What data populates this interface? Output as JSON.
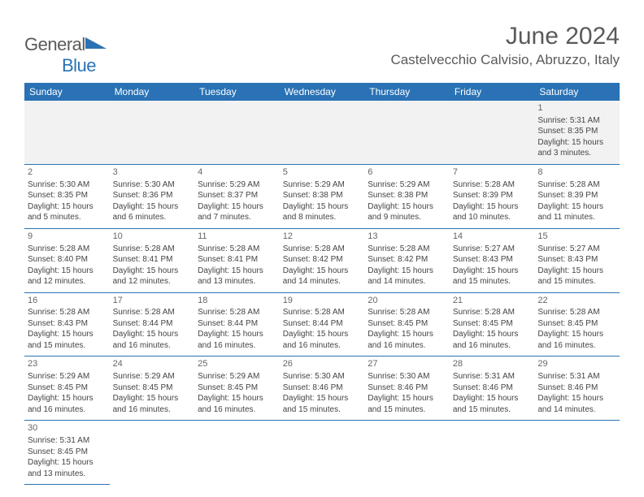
{
  "logo": {
    "text1": "General",
    "text2": "Blue"
  },
  "title": "June 2024",
  "location": "Castelvecchio Calvisio, Abruzzo, Italy",
  "colors": {
    "header_bg": "#2a72b5",
    "header_fg": "#ffffff",
    "border": "#2a72b5",
    "text": "#444444",
    "title": "#5a5a5a"
  },
  "day_headers": [
    "Sunday",
    "Monday",
    "Tuesday",
    "Wednesday",
    "Thursday",
    "Friday",
    "Saturday"
  ],
  "weeks": [
    [
      null,
      null,
      null,
      null,
      null,
      null,
      {
        "n": "1",
        "sr": "Sunrise: 5:31 AM",
        "ss": "Sunset: 8:35 PM",
        "dl": "Daylight: 15 hours and 3 minutes."
      }
    ],
    [
      {
        "n": "2",
        "sr": "Sunrise: 5:30 AM",
        "ss": "Sunset: 8:35 PM",
        "dl": "Daylight: 15 hours and 5 minutes."
      },
      {
        "n": "3",
        "sr": "Sunrise: 5:30 AM",
        "ss": "Sunset: 8:36 PM",
        "dl": "Daylight: 15 hours and 6 minutes."
      },
      {
        "n": "4",
        "sr": "Sunrise: 5:29 AM",
        "ss": "Sunset: 8:37 PM",
        "dl": "Daylight: 15 hours and 7 minutes."
      },
      {
        "n": "5",
        "sr": "Sunrise: 5:29 AM",
        "ss": "Sunset: 8:38 PM",
        "dl": "Daylight: 15 hours and 8 minutes."
      },
      {
        "n": "6",
        "sr": "Sunrise: 5:29 AM",
        "ss": "Sunset: 8:38 PM",
        "dl": "Daylight: 15 hours and 9 minutes."
      },
      {
        "n": "7",
        "sr": "Sunrise: 5:28 AM",
        "ss": "Sunset: 8:39 PM",
        "dl": "Daylight: 15 hours and 10 minutes."
      },
      {
        "n": "8",
        "sr": "Sunrise: 5:28 AM",
        "ss": "Sunset: 8:39 PM",
        "dl": "Daylight: 15 hours and 11 minutes."
      }
    ],
    [
      {
        "n": "9",
        "sr": "Sunrise: 5:28 AM",
        "ss": "Sunset: 8:40 PM",
        "dl": "Daylight: 15 hours and 12 minutes."
      },
      {
        "n": "10",
        "sr": "Sunrise: 5:28 AM",
        "ss": "Sunset: 8:41 PM",
        "dl": "Daylight: 15 hours and 12 minutes."
      },
      {
        "n": "11",
        "sr": "Sunrise: 5:28 AM",
        "ss": "Sunset: 8:41 PM",
        "dl": "Daylight: 15 hours and 13 minutes."
      },
      {
        "n": "12",
        "sr": "Sunrise: 5:28 AM",
        "ss": "Sunset: 8:42 PM",
        "dl": "Daylight: 15 hours and 14 minutes."
      },
      {
        "n": "13",
        "sr": "Sunrise: 5:28 AM",
        "ss": "Sunset: 8:42 PM",
        "dl": "Daylight: 15 hours and 14 minutes."
      },
      {
        "n": "14",
        "sr": "Sunrise: 5:27 AM",
        "ss": "Sunset: 8:43 PM",
        "dl": "Daylight: 15 hours and 15 minutes."
      },
      {
        "n": "15",
        "sr": "Sunrise: 5:27 AM",
        "ss": "Sunset: 8:43 PM",
        "dl": "Daylight: 15 hours and 15 minutes."
      }
    ],
    [
      {
        "n": "16",
        "sr": "Sunrise: 5:28 AM",
        "ss": "Sunset: 8:43 PM",
        "dl": "Daylight: 15 hours and 15 minutes."
      },
      {
        "n": "17",
        "sr": "Sunrise: 5:28 AM",
        "ss": "Sunset: 8:44 PM",
        "dl": "Daylight: 15 hours and 16 minutes."
      },
      {
        "n": "18",
        "sr": "Sunrise: 5:28 AM",
        "ss": "Sunset: 8:44 PM",
        "dl": "Daylight: 15 hours and 16 minutes."
      },
      {
        "n": "19",
        "sr": "Sunrise: 5:28 AM",
        "ss": "Sunset: 8:44 PM",
        "dl": "Daylight: 15 hours and 16 minutes."
      },
      {
        "n": "20",
        "sr": "Sunrise: 5:28 AM",
        "ss": "Sunset: 8:45 PM",
        "dl": "Daylight: 15 hours and 16 minutes."
      },
      {
        "n": "21",
        "sr": "Sunrise: 5:28 AM",
        "ss": "Sunset: 8:45 PM",
        "dl": "Daylight: 15 hours and 16 minutes."
      },
      {
        "n": "22",
        "sr": "Sunrise: 5:28 AM",
        "ss": "Sunset: 8:45 PM",
        "dl": "Daylight: 15 hours and 16 minutes."
      }
    ],
    [
      {
        "n": "23",
        "sr": "Sunrise: 5:29 AM",
        "ss": "Sunset: 8:45 PM",
        "dl": "Daylight: 15 hours and 16 minutes."
      },
      {
        "n": "24",
        "sr": "Sunrise: 5:29 AM",
        "ss": "Sunset: 8:45 PM",
        "dl": "Daylight: 15 hours and 16 minutes."
      },
      {
        "n": "25",
        "sr": "Sunrise: 5:29 AM",
        "ss": "Sunset: 8:45 PM",
        "dl": "Daylight: 15 hours and 16 minutes."
      },
      {
        "n": "26",
        "sr": "Sunrise: 5:30 AM",
        "ss": "Sunset: 8:46 PM",
        "dl": "Daylight: 15 hours and 15 minutes."
      },
      {
        "n": "27",
        "sr": "Sunrise: 5:30 AM",
        "ss": "Sunset: 8:46 PM",
        "dl": "Daylight: 15 hours and 15 minutes."
      },
      {
        "n": "28",
        "sr": "Sunrise: 5:31 AM",
        "ss": "Sunset: 8:46 PM",
        "dl": "Daylight: 15 hours and 15 minutes."
      },
      {
        "n": "29",
        "sr": "Sunrise: 5:31 AM",
        "ss": "Sunset: 8:46 PM",
        "dl": "Daylight: 15 hours and 14 minutes."
      }
    ],
    [
      {
        "n": "30",
        "sr": "Sunrise: 5:31 AM",
        "ss": "Sunset: 8:45 PM",
        "dl": "Daylight: 15 hours and 13 minutes."
      },
      null,
      null,
      null,
      null,
      null,
      null
    ]
  ]
}
